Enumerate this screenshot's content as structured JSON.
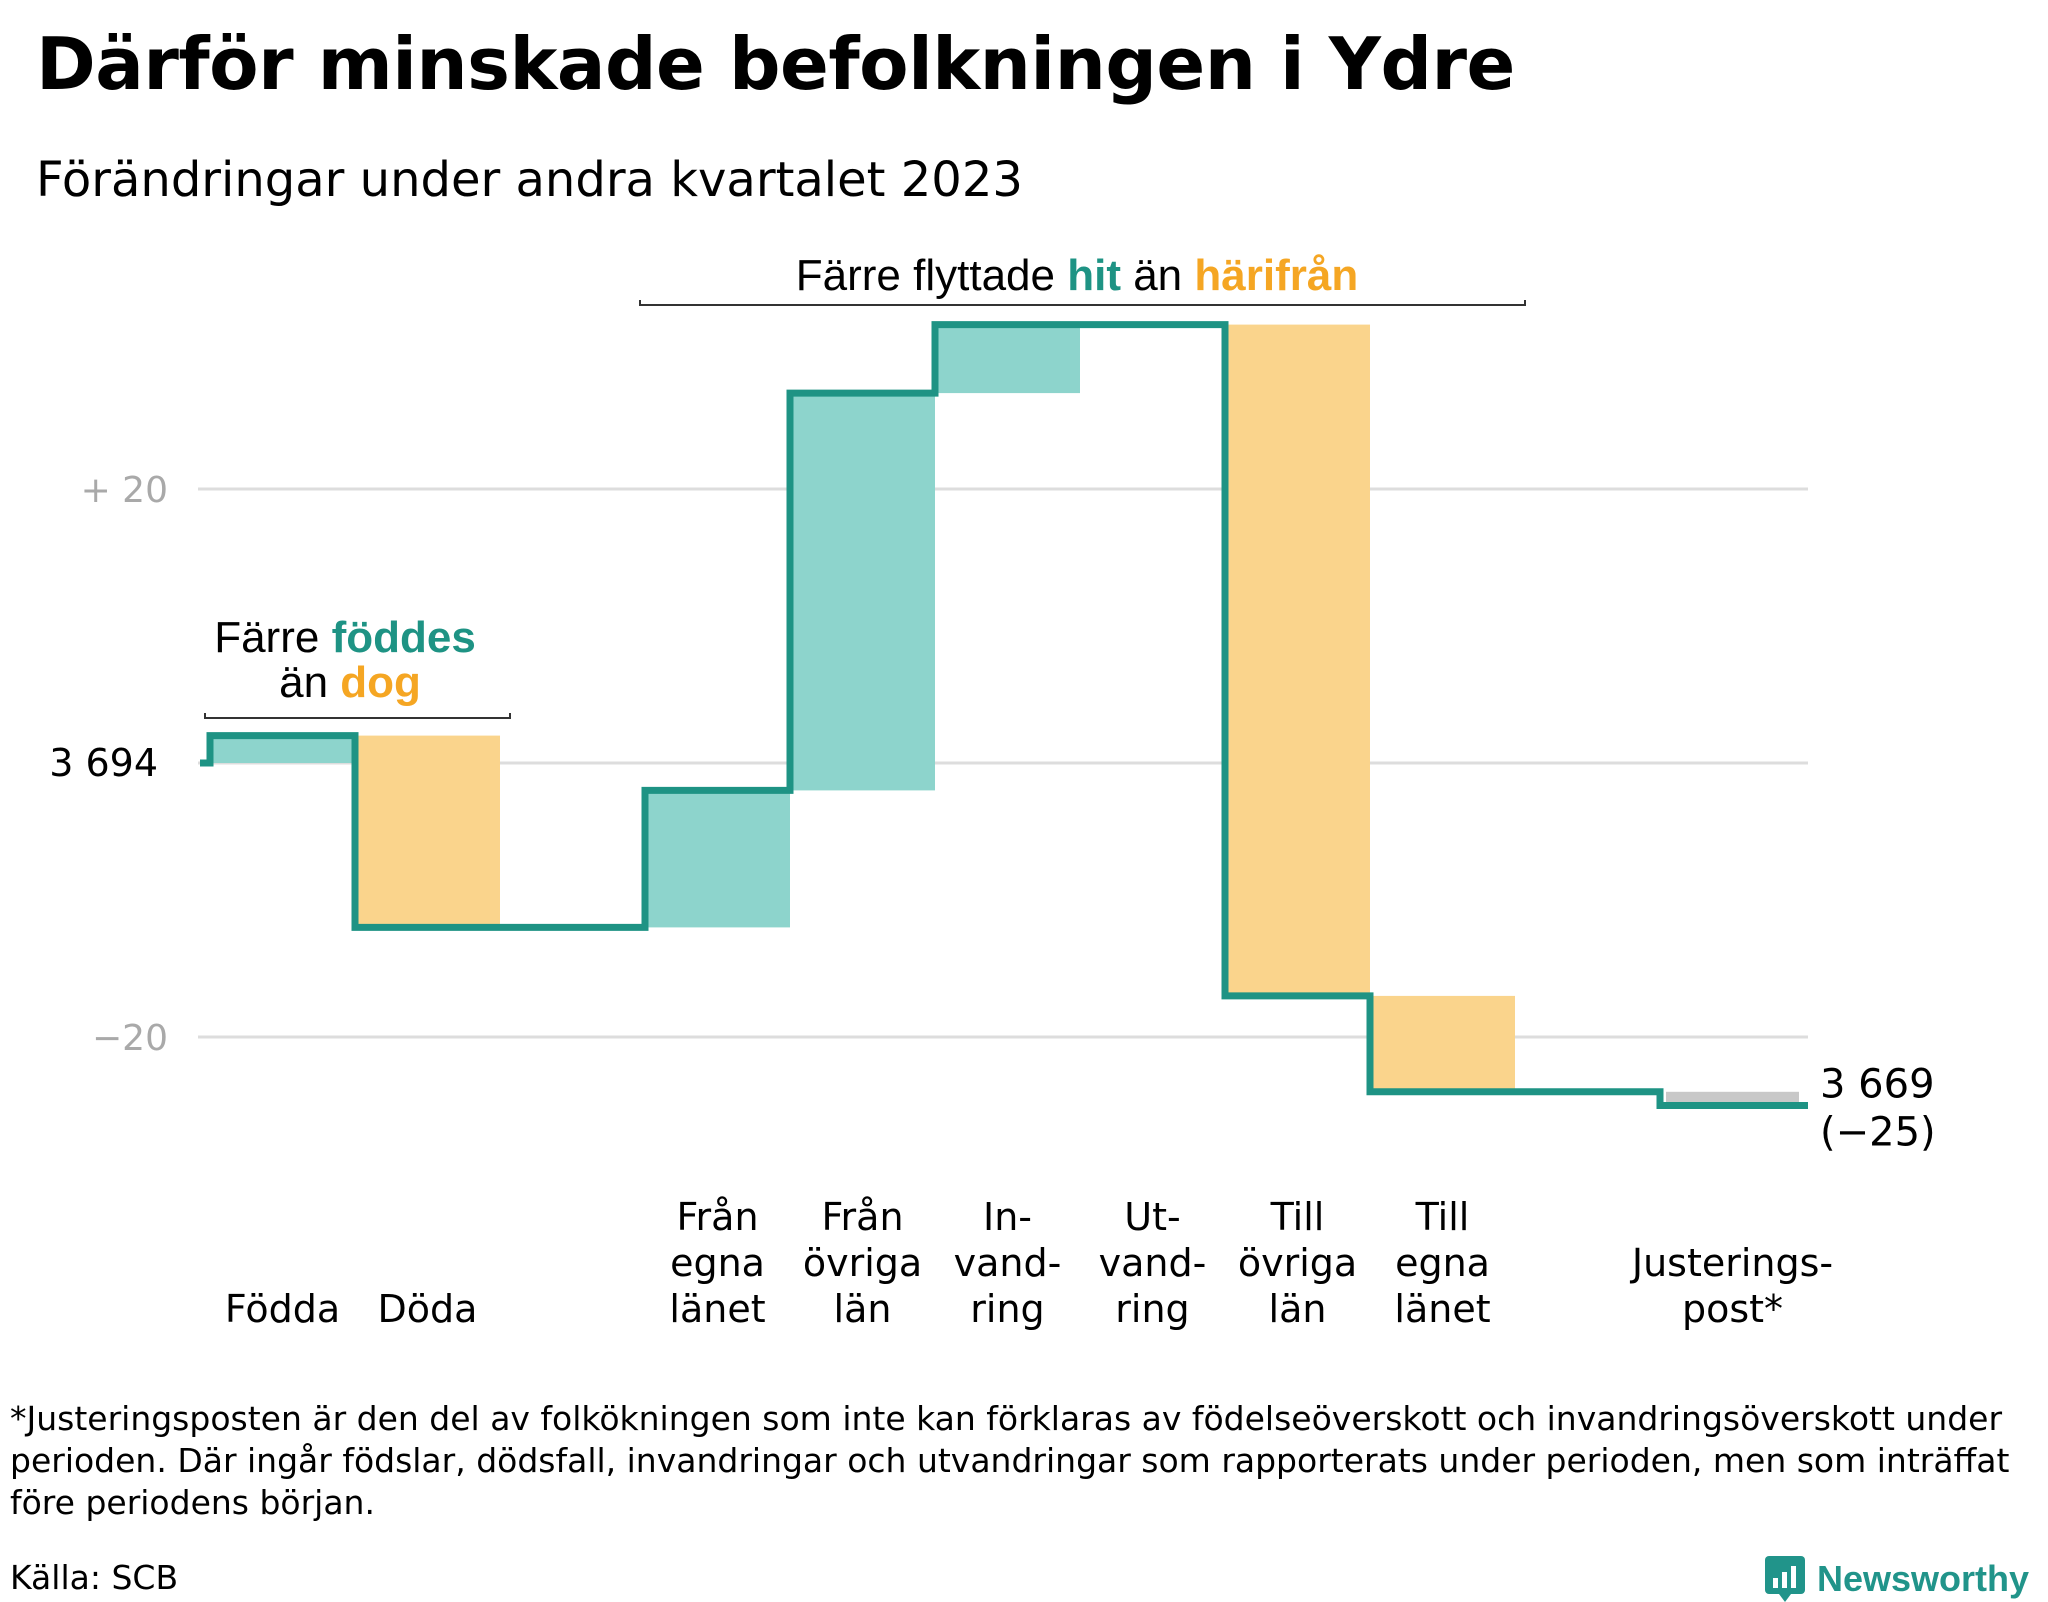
{
  "title": "Därför minskade befolkningen i Ydre",
  "subtitle": "Förändringar under andra kvartalet 2023",
  "colors": {
    "increase": "#8dd4cc",
    "decrease": "#fad48c",
    "adjustment": "#c8c8c8",
    "line": "#1e9384",
    "teal_text": "#1e9384",
    "orange_text": "#f5a623",
    "grid": "#dddddd",
    "tick_text": "#a9a9a9"
  },
  "chart_data": {
    "type": "waterfall",
    "start_value": 3694,
    "start_label": "3  694",
    "end_value_label": "3 669",
    "end_change_label": "(−25)",
    "y_ticks": [
      {
        "value": 20,
        "label": "+  20"
      },
      {
        "value": 0,
        "label": ""
      },
      {
        "value": -20,
        "label": "−20"
      }
    ],
    "steps": [
      {
        "label": [
          "Födda"
        ],
        "change": 2,
        "kind": "increase"
      },
      {
        "label": [
          "Döda"
        ],
        "change": -14,
        "kind": "decrease"
      },
      {
        "label": [
          ""
        ],
        "change": 0,
        "kind": "none"
      },
      {
        "label": [
          "Från",
          "egna",
          "länet"
        ],
        "change": 10,
        "kind": "increase"
      },
      {
        "label": [
          "Från",
          "övriga",
          "län"
        ],
        "change": 29,
        "kind": "increase"
      },
      {
        "label": [
          "In-",
          "vand-",
          "ring"
        ],
        "change": 5,
        "kind": "increase"
      },
      {
        "label": [
          "Ut-",
          "vand-",
          "ring"
        ],
        "change": 0,
        "kind": "none"
      },
      {
        "label": [
          "Till",
          "övriga",
          "län"
        ],
        "change": -49,
        "kind": "decrease"
      },
      {
        "label": [
          "Till",
          "egna",
          "länet"
        ],
        "change": -7,
        "kind": "decrease"
      },
      {
        "label": [
          ""
        ],
        "change": 0,
        "kind": "none"
      },
      {
        "label": [
          "Justerings-",
          "post*"
        ],
        "change": -1,
        "kind": "adjustment"
      }
    ],
    "annotations": [
      {
        "parts": [
          {
            "text": "Färre ",
            "style": "plain"
          },
          {
            "text": "föddes",
            "style": "teal"
          }
        ],
        "parts2": [
          {
            "text": "än ",
            "style": "plain"
          },
          {
            "text": "dog",
            "style": "orange"
          }
        ]
      },
      {
        "parts": [
          {
            "text": "Färre flyttade ",
            "style": "plain"
          },
          {
            "text": "hit",
            "style": "teal"
          },
          {
            "text": " än ",
            "style": "plain"
          },
          {
            "text": "härifrån",
            "style": "orange"
          }
        ]
      }
    ]
  },
  "footnote": "*Justeringsposten är den del av folkökningen som inte kan förklaras av födelseöverskott och invandringsöverskott under perioden. Där ingår födslar, dödsfall, invandringar och utvandringar som rapporterats under perioden, men som inträffat före periodens början.",
  "source": "Källa: SCB",
  "brand": "Newsworthy"
}
